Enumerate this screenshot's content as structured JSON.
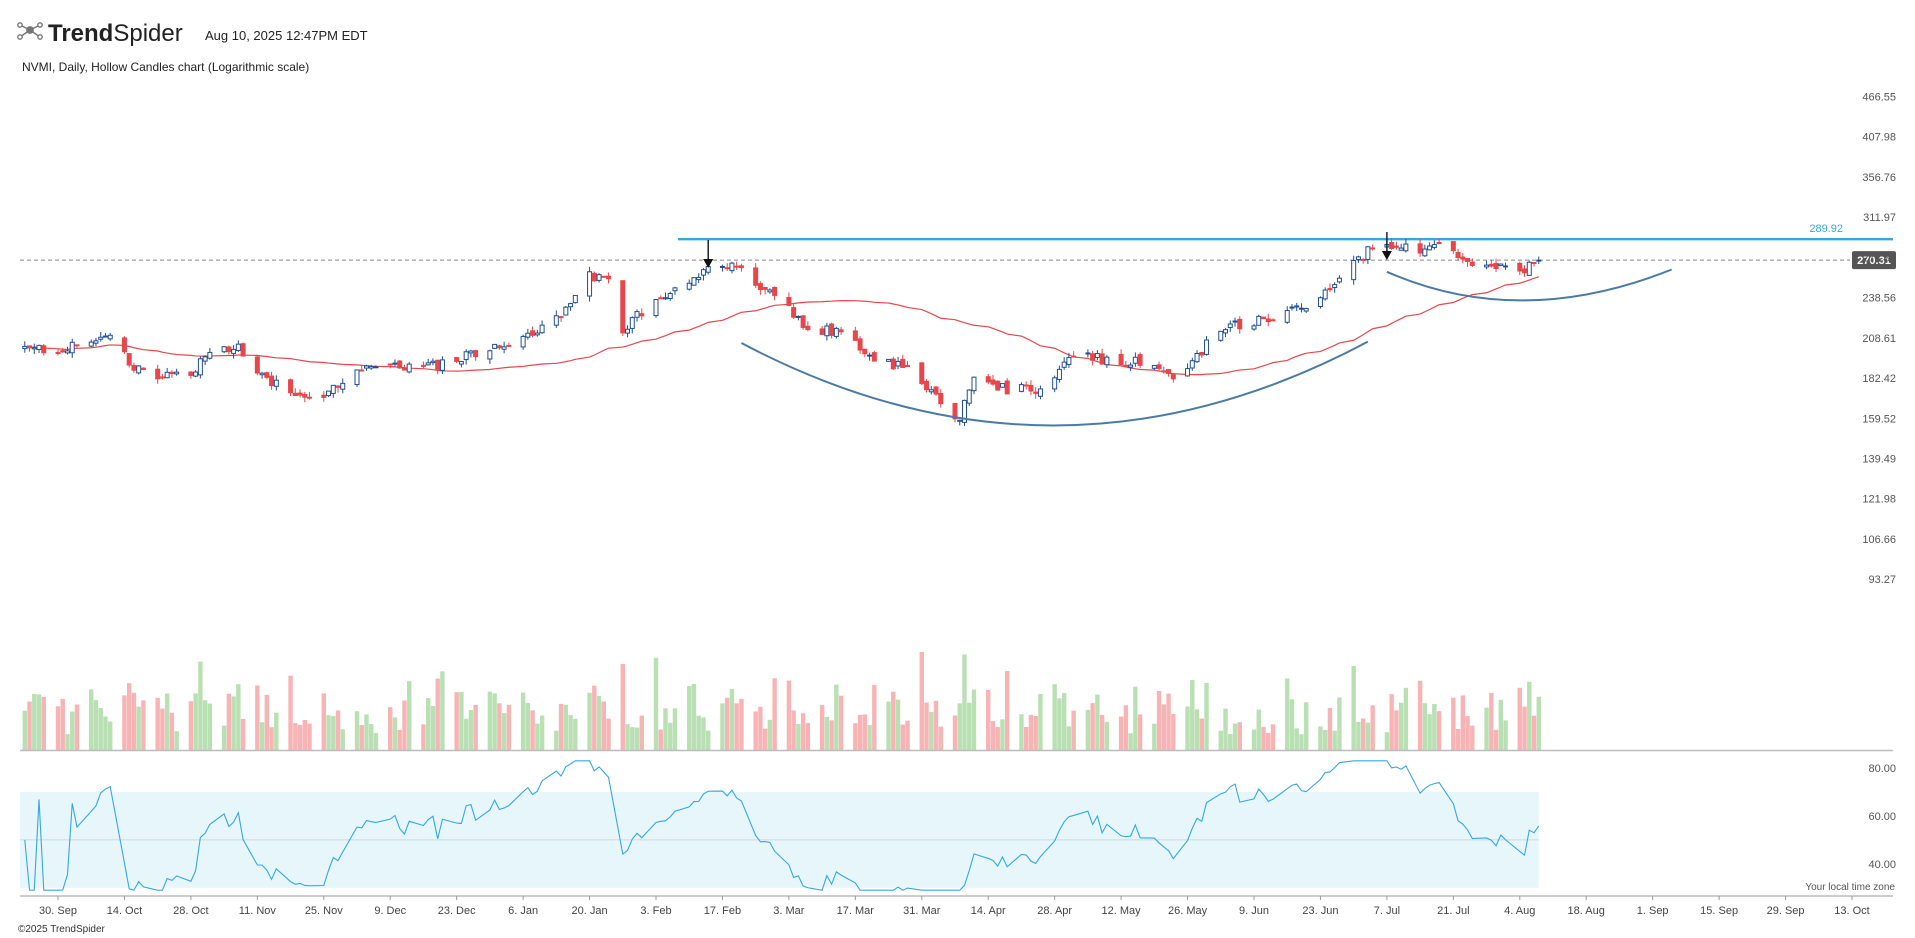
{
  "header": {
    "brand_bold": "Trend",
    "brand_regular": "Spider",
    "timestamp": "Aug 10, 2025 12:47PM EDT",
    "chart_subtitle": "NVMI, Daily, Hollow Candles chart (Logarithmic scale)"
  },
  "footer": {
    "copyright": "©2025 TrendSpider",
    "timezone_note": "Your local time zone"
  },
  "colors": {
    "up": "#1f4e96",
    "down": "#e8464b",
    "volume_up": "#b9e0b3",
    "volume_down": "#f8b4b4",
    "moving_average": "#e8464b",
    "rsi_line": "#35a8e0",
    "rsi_band": "#e6f6fb",
    "resistance_line": "#35a8e0",
    "cup_handle_arc": "#4a7ba6",
    "last_price_badge": "#555555"
  },
  "chart_data": {
    "type": "candlestick",
    "symbol": "NVMI",
    "interval": "Daily",
    "style": "Hollow Candles",
    "scale": "logarithmic",
    "x_tick_labels": [
      "30. Sep",
      "14. Oct",
      "28. Oct",
      "11. Nov",
      "25. Nov",
      "9. Dec",
      "23. Dec",
      "6. Jan",
      "20. Jan",
      "3. Feb",
      "17. Feb",
      "3. Mar",
      "17. Mar",
      "31. Mar",
      "14. Apr",
      "28. Apr",
      "12. May",
      "26. May",
      "9. Jun",
      "23. Jun",
      "7. Jul",
      "21. Jul",
      "4. Aug",
      "18. Aug",
      "1. Sep",
      "15. Sep",
      "29. Sep",
      "13. Oct"
    ],
    "y_tick_labels": [
      "466.55",
      "407.98",
      "356.76",
      "311.97",
      "272.80",
      "238.56",
      "208.61",
      "182.42",
      "159.52",
      "139.49",
      "121.98",
      "106.66",
      "93.27"
    ],
    "ylim": [
      87,
      480
    ],
    "resistance_level": 289.92,
    "resistance_label": "289.92",
    "last_price": 270.31,
    "last_price_label": "270.31",
    "moving_average": true,
    "annotations": [
      "arrow at February high",
      "arrow at July high",
      "cup arc",
      "handle arc"
    ],
    "close_anchors": [
      [
        "2024-09-23",
        200
      ],
      [
        "2024-10-07",
        203
      ],
      [
        "2024-10-11",
        214
      ],
      [
        "2024-10-15",
        190
      ],
      [
        "2024-10-21",
        182
      ],
      [
        "2024-10-28",
        186
      ],
      [
        "2024-11-01",
        198
      ],
      [
        "2024-11-07",
        202
      ],
      [
        "2024-11-11",
        185
      ],
      [
        "2024-11-18",
        173
      ],
      [
        "2024-11-25",
        174
      ],
      [
        "2024-11-27",
        178
      ],
      [
        "2024-12-02",
        186
      ],
      [
        "2024-12-09",
        190
      ],
      [
        "2024-12-16",
        188
      ],
      [
        "2024-12-23",
        194
      ],
      [
        "2024-12-30",
        200
      ],
      [
        "2025-01-06",
        208
      ],
      [
        "2025-01-13",
        222
      ],
      [
        "2025-01-20",
        258
      ],
      [
        "2025-01-24",
        250
      ],
      [
        "2025-01-27",
        215
      ],
      [
        "2025-02-03",
        236
      ],
      [
        "2025-02-10",
        248
      ],
      [
        "2025-02-14",
        268
      ],
      [
        "2025-02-21",
        262
      ],
      [
        "2025-02-28",
        238
      ],
      [
        "2025-03-07",
        216
      ],
      [
        "2025-03-14",
        212
      ],
      [
        "2025-03-21",
        195
      ],
      [
        "2025-03-28",
        188
      ],
      [
        "2025-04-04",
        168
      ],
      [
        "2025-04-08",
        160
      ],
      [
        "2025-04-11",
        182
      ],
      [
        "2025-04-18",
        175
      ],
      [
        "2025-04-25",
        176
      ],
      [
        "2025-05-02",
        196
      ],
      [
        "2025-05-09",
        194
      ],
      [
        "2025-05-16",
        192
      ],
      [
        "2025-05-23",
        184
      ],
      [
        "2025-05-27",
        193
      ],
      [
        "2025-06-02",
        215
      ],
      [
        "2025-06-09",
        220
      ],
      [
        "2025-06-16",
        228
      ],
      [
        "2025-06-23",
        236
      ],
      [
        "2025-06-30",
        268
      ],
      [
        "2025-07-03",
        278
      ],
      [
        "2025-07-07",
        283
      ],
      [
        "2025-07-14",
        280
      ],
      [
        "2025-07-18",
        282
      ],
      [
        "2025-07-23",
        270
      ],
      [
        "2025-07-28",
        262
      ],
      [
        "2025-08-01",
        265
      ],
      [
        "2025-08-04",
        258
      ],
      [
        "2025-08-08",
        270
      ]
    ],
    "volume_panel": {
      "type": "bar",
      "series": "volume"
    },
    "rsi_panel": {
      "type": "line",
      "y_tick_labels": [
        "80.00",
        "60.00",
        "40.00"
      ],
      "ylim": [
        27,
        85
      ],
      "band": [
        30,
        70
      ],
      "midline": 50
    }
  }
}
